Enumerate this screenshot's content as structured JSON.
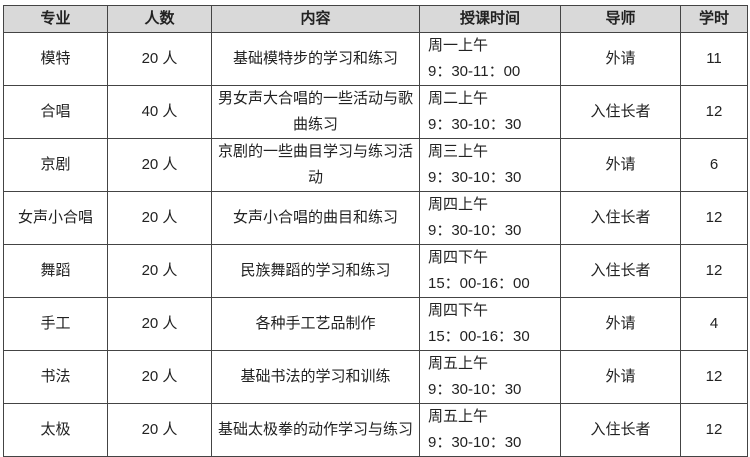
{
  "headers": [
    "专业",
    "人数",
    "内容",
    "授课时间",
    "导师",
    "学时"
  ],
  "rows": [
    {
      "major": "模特",
      "count": "20 人",
      "content": "基础模特步的学习和练习",
      "day": "周一上午",
      "time": "9：30-11：00",
      "teacher": "外请",
      "hours": "11"
    },
    {
      "major": "合唱",
      "count": "40 人",
      "content": "男女声大合唱的一些活动与歌曲练习",
      "day": "周二上午",
      "time": "9：30-10：30",
      "teacher": "入住长者",
      "hours": "12"
    },
    {
      "major": "京剧",
      "count": "20 人",
      "content": "京剧的一些曲目学习与练习活动",
      "day": "周三上午",
      "time": "9：30-10：30",
      "teacher": "外请",
      "hours": "6"
    },
    {
      "major": "女声小合唱",
      "count": "20 人",
      "content": "女声小合唱的曲目和练习",
      "day": "周四上午",
      "time": "9：30-10：30",
      "teacher": "入住长者",
      "hours": "12"
    },
    {
      "major": "舞蹈",
      "count": "20 人",
      "content": "民族舞蹈的学习和练习",
      "day": "周四下午",
      "time": "15：00-16：00",
      "teacher": "入住长者",
      "hours": "12"
    },
    {
      "major": "手工",
      "count": "20 人",
      "content": "各种手工艺品制作",
      "day": "周四下午",
      "time": "15：00-16：30",
      "teacher": "外请",
      "hours": "4"
    },
    {
      "major": "书法",
      "count": "20 人",
      "content": "基础书法的学习和训练",
      "day": "周五上午",
      "time": "9：30-10：30",
      "teacher": "外请",
      "hours": "12"
    },
    {
      "major": "太极",
      "count": "20 人",
      "content": "基础太极拳的动作学习与练习",
      "day": "周五上午",
      "time": "9：30-10：30",
      "teacher": "入住长者",
      "hours": "12"
    }
  ]
}
